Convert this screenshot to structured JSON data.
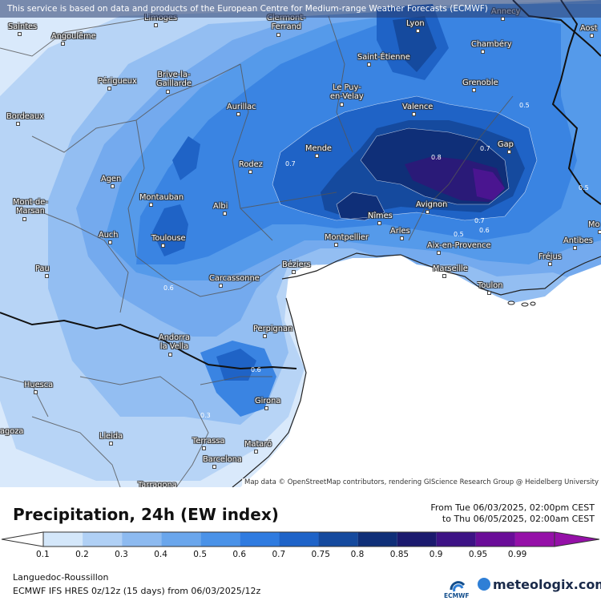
{
  "banner": "This service is based on data and products of the European Centre for Medium-range Weather Forecasts (ECMWF)",
  "attribution": "Map data © OpenStreetMap contributors, rendering GIScience Research Group @ Heidelberg University",
  "title": "Precipitation, 24h (EW index)",
  "period": {
    "from": "From Tue 06/03/2025, 02:00pm CEST",
    "to": "to Thu 06/05/2025, 02:00am CEST"
  },
  "colorbar": {
    "ticks": [
      "0.1",
      "0.2",
      "0.3",
      "0.4",
      "0.5",
      "0.6",
      "0.7",
      "0.75",
      "0.8",
      "0.85",
      "0.9",
      "0.95",
      "0.99"
    ],
    "colors": [
      "#d4e7fa",
      "#b0d0f5",
      "#8dbaf0",
      "#6aa6ec",
      "#4a92e8",
      "#2f7be0",
      "#1e63c8",
      "#154a9e",
      "#0f2f78",
      "#1b1a6e",
      "#3d1385",
      "#6a0d98",
      "#9510a8"
    ]
  },
  "region": "Languedoc-Roussillon",
  "model": "ECMWF IFS HRES 0z/12z (15 days) from 06/03/2025/12z",
  "logos": {
    "ecmwf": "ECMWF",
    "meteologix": "meteologix.com"
  },
  "cities": [
    {
      "name": "Saintes"
    },
    {
      "name": "Angoulême"
    },
    {
      "name": "Limoges"
    },
    {
      "name": "Clermont-Ferrand"
    },
    {
      "name": "Lyon"
    },
    {
      "name": "Annecy"
    },
    {
      "name": "Aost"
    },
    {
      "name": "Chambéry"
    },
    {
      "name": "Saint-Étienne"
    },
    {
      "name": "Périgueux"
    },
    {
      "name": "Brive-la-Gaillarde"
    },
    {
      "name": "Le Puy-en-Velay"
    },
    {
      "name": "Grenoble"
    },
    {
      "name": "Bordeaux"
    },
    {
      "name": "Aurillac"
    },
    {
      "name": "Valence"
    },
    {
      "name": "Mende"
    },
    {
      "name": "Gap"
    },
    {
      "name": "Rodez"
    },
    {
      "name": "Agen"
    },
    {
      "name": "Montauban"
    },
    {
      "name": "Mont-de-Marsan"
    },
    {
      "name": "Albi"
    },
    {
      "name": "Nîmes"
    },
    {
      "name": "Avignon"
    },
    {
      "name": "Auch"
    },
    {
      "name": "Toulouse"
    },
    {
      "name": "Montpellier"
    },
    {
      "name": "Arles"
    },
    {
      "name": "Aix-en-Provence"
    },
    {
      "name": "Antibes"
    },
    {
      "name": "Mo"
    },
    {
      "name": "Pau"
    },
    {
      "name": "Béziers"
    },
    {
      "name": "Fréjus"
    },
    {
      "name": "Marseille"
    },
    {
      "name": "Carcassonne"
    },
    {
      "name": "Toulon"
    },
    {
      "name": "Perpignan"
    },
    {
      "name": "Andorra la Vella"
    },
    {
      "name": "Huesca"
    },
    {
      "name": "Girona"
    },
    {
      "name": "agoza"
    },
    {
      "name": "Lleida"
    },
    {
      "name": "Terrassa"
    },
    {
      "name": "Mataró"
    },
    {
      "name": "Barcelona"
    },
    {
      "name": "Tarragona"
    }
  ],
  "contour_labels": [
    "0.8",
    "0.7",
    "0.7",
    "0.7",
    "0.6",
    "0.5",
    "0.5",
    "0.6",
    "0.3",
    "0.6",
    "0.3",
    "0.5"
  ]
}
